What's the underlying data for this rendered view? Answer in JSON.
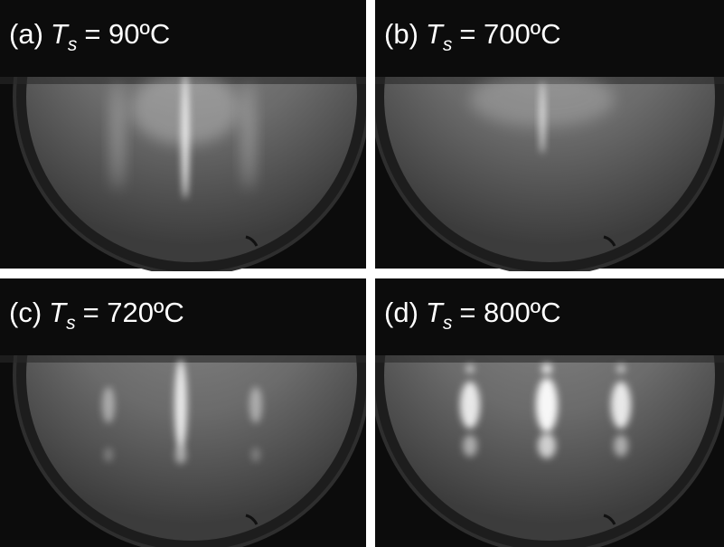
{
  "panels": [
    {
      "letter": "(a)",
      "variable": "T",
      "subscript": "s",
      "value": "= 90ºC"
    },
    {
      "letter": "(b)",
      "variable": "T",
      "subscript": "s",
      "value": "= 700ºC"
    },
    {
      "letter": "(c)",
      "variable": "T",
      "subscript": "s",
      "value": "= 720ºC"
    },
    {
      "letter": "(d)",
      "variable": "T",
      "subscript": "s",
      "value": "= 800ºC"
    }
  ]
}
